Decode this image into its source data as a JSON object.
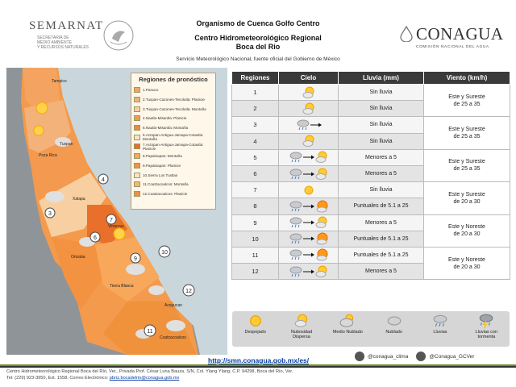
{
  "header": {
    "semarnat_word": "SEMARNAT",
    "semarnat_sub": [
      "SECRETARÍA DE",
      "MEDIO AMBIENTE",
      "Y RECURSOS NATURALES"
    ],
    "title1": "Organismo de Cuenca Golfo Centro",
    "title2": "Centro Hidrometeorológico Regional",
    "title3": "Boca del Rio",
    "subtitle": "Servicio Meteorológico Nacional, fuente oficial del Gobierno de México",
    "conagua_word": "CONAGUA",
    "conagua_sub": "COMISIÓN NACIONAL DEL AGUA"
  },
  "legend": {
    "title": "Regiones de pronóstico",
    "items": [
      {
        "label": "1.Panuco",
        "color": "#f4a460"
      },
      {
        "label": "2.Tuxpan-Cazones-Tecolutla: Planicie",
        "color": "#f2b27a"
      },
      {
        "label": "3.Tuxpan-Cazones-Tecolutla: Montaña",
        "color": "#f7cfa1"
      },
      {
        "label": "4.Nautla-Misantla: Planicie",
        "color": "#f49a50"
      },
      {
        "label": "5.Nautla-Misantla: Montaña",
        "color": "#ef8a3a"
      },
      {
        "label": "6.Actopan-Antigua-Jamapa-Cotaxtla: Montaña",
        "color": "#fbe3c7"
      },
      {
        "label": "7.Actopan-Antigua-Jamapa-Cotaxtla: Planicie",
        "color": "#e8702a"
      },
      {
        "label": "8.Papaloapan: Montaña",
        "color": "#f7a85a"
      },
      {
        "label": "9.Papaloapan: Planicie",
        "color": "#f39240"
      },
      {
        "label": "10.Sierra Los Tuxtlas",
        "color": "#fde5c8"
      },
      {
        "label": "11.Coatzacoalcos: Montaña",
        "color": "#f6b66e"
      },
      {
        "label": "12.Coatzacoalcos: Planicie",
        "color": "#f0913c"
      }
    ]
  },
  "table": {
    "headers": [
      "Regiones",
      "Cielo",
      "Lluvia (mm)",
      "Viento (km/h)"
    ],
    "rows": [
      {
        "region": "1",
        "sky": "sunny-partly",
        "rain": "Sin lluvia"
      },
      {
        "region": "2",
        "sky": "sunny-partly",
        "rain": "Sin lluvia"
      },
      {
        "region": "3",
        "sky": "cloudy-to",
        "rain": "Sin lluvia"
      },
      {
        "region": "4",
        "sky": "sunny-partly",
        "rain": "Sin lluvia"
      },
      {
        "region": "5",
        "sky": "rain-to-partly",
        "rain": "Menores a 5"
      },
      {
        "region": "6",
        "sky": "rain-to-partly",
        "rain": "Menores a 5"
      },
      {
        "region": "7",
        "sky": "sunny",
        "rain": "Sin lluvia"
      },
      {
        "region": "8",
        "sky": "rain-to-storm",
        "rain": "Puntuales de 5.1 a 25"
      },
      {
        "region": "9",
        "sky": "rain-to-partly",
        "rain": "Menores a 5"
      },
      {
        "region": "10",
        "sky": "rain-to-storm",
        "rain": "Puntuales de 5.1 a 25"
      },
      {
        "region": "11",
        "sky": "rain-to-storm",
        "rain": "Puntuales de 5.1 a 25"
      },
      {
        "region": "12",
        "sky": "rain-to-partly",
        "rain": "Menores a 5"
      }
    ],
    "wind": [
      {
        "text1": "Este y Sureste",
        "text2": "de 25 a 35"
      },
      {
        "text1": "Este y Sureste",
        "text2": "de 25 a 35"
      },
      {
        "text1": "Este y Sureste",
        "text2": "de 25 a 35"
      },
      {
        "text1": "Este y Sureste",
        "text2": "de 20 a 30"
      },
      {
        "text1": "Este y Noreste",
        "text2": "de 20 a 30"
      },
      {
        "text1": "Este y Noreste",
        "text2": "de 20 a 30"
      }
    ]
  },
  "map": {
    "labels": [
      {
        "label": "Tampico",
        "cls": "city"
      },
      {
        "label": "Tuxpan",
        "cls": "city"
      },
      {
        "label": "Poza Rica",
        "cls": "city"
      },
      {
        "label": "Xalapa",
        "cls": "city"
      },
      {
        "label": "Veracruz",
        "cls": "city"
      },
      {
        "label": "Orizaba",
        "cls": "city"
      },
      {
        "label": "Tierra Blanca",
        "cls": "city"
      },
      {
        "label": "Acayucan",
        "cls": "city"
      },
      {
        "label": "Coatzacoalcos",
        "cls": "city"
      }
    ]
  },
  "icons": [
    {
      "label": "Despejado",
      "kind": "sun"
    },
    {
      "label": "Nubosidad Dispersa",
      "kind": "sun-cloud"
    },
    {
      "label": "Medio Nublado",
      "kind": "half-cloud"
    },
    {
      "label": "Nublado",
      "kind": "cloud"
    },
    {
      "label": "Lluvias",
      "kind": "rain"
    },
    {
      "label": "Lluvias con tormenta",
      "kind": "storm"
    }
  ],
  "footer": {
    "url": "http://smn.conagua.gob.mx/es/",
    "twitter": "@conagua_clima",
    "twitter2": "@Conagua_GCVer",
    "line1": "Centro Hidrometeorológico Regional Boca del Río, Ver., Privada Prof. César Luna Bauza, S/N, Col. Ylang Ylang, C.P. 94298, Boca del Río, Ver.",
    "line2_prefix": "Tel: (229) 923-3950, Ext. 1558, Correo Electrónico: ",
    "email": "pbriz.bocadelrio@conagua.gob.mx"
  }
}
